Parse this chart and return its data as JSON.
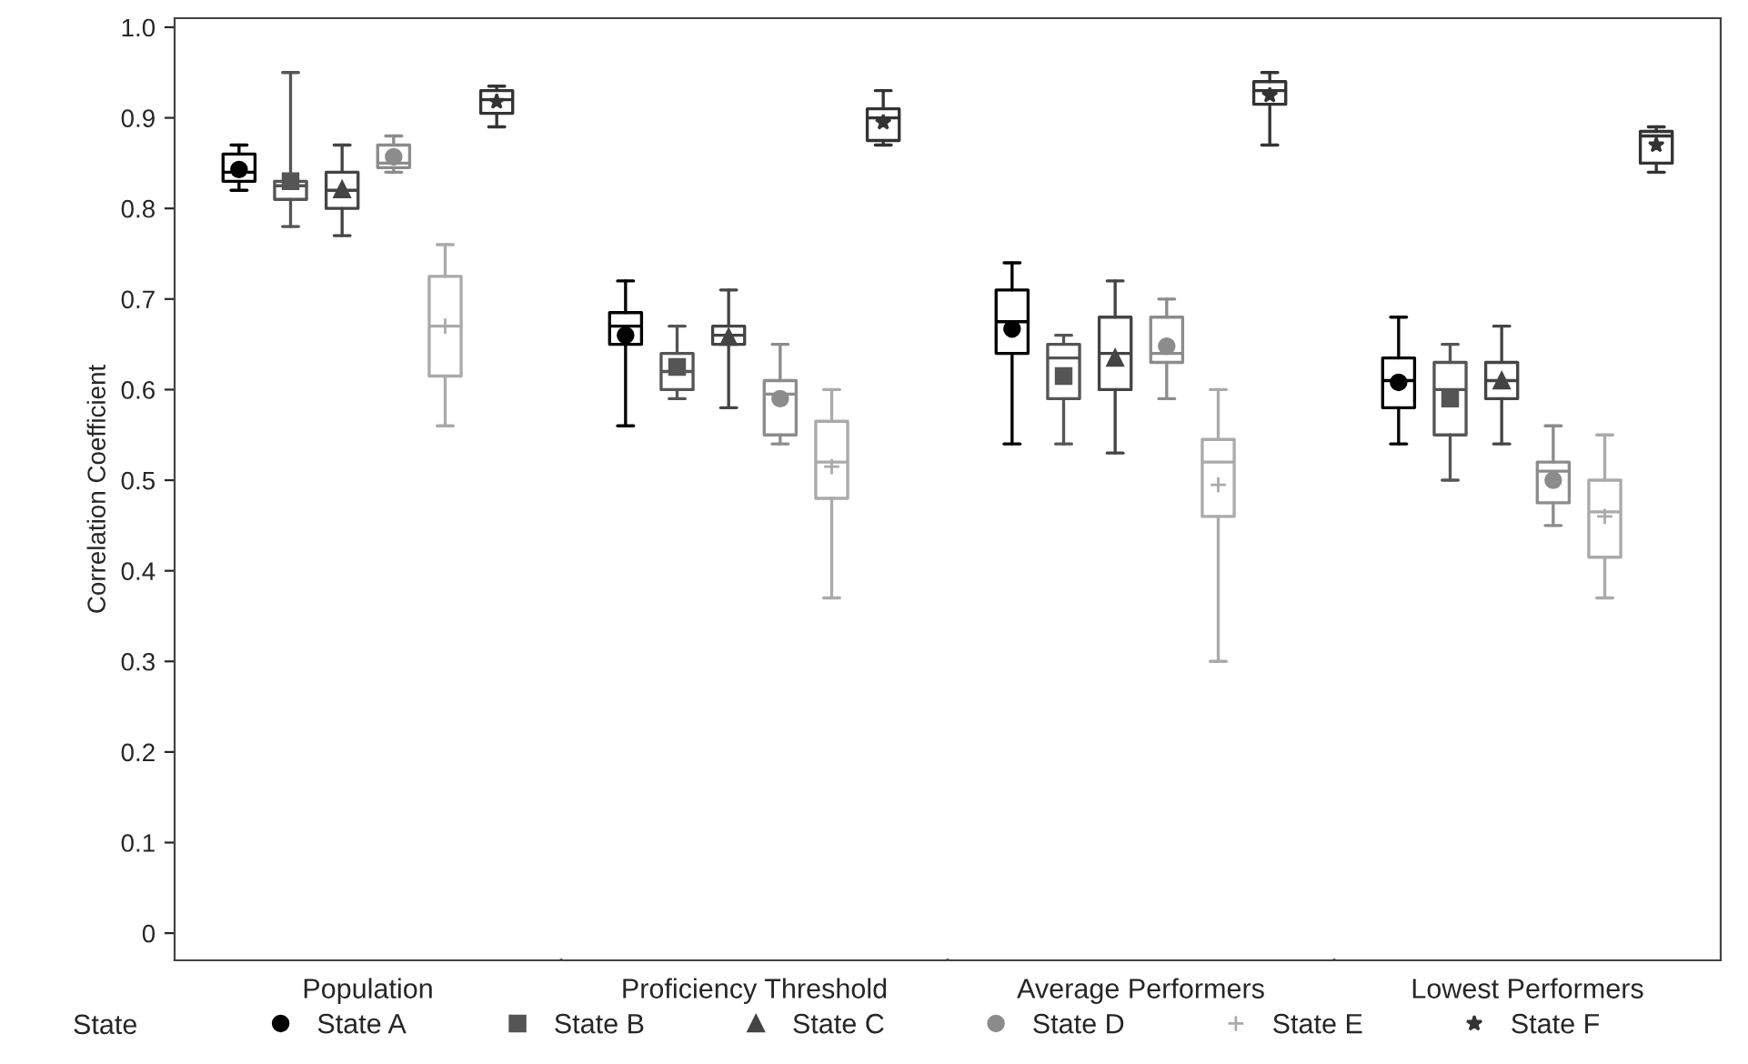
{
  "chart_data": {
    "type": "box",
    "ylabel": "Correlation Coefficient",
    "legend_title": "State",
    "legend": "bottom",
    "grid": false,
    "categories": [
      "Population",
      "Proficiency Threshold",
      "Average Performers",
      "Lowest Performers"
    ],
    "ylim": [
      -0.03,
      1.01
    ],
    "yticks": [
      {
        "value": 0,
        "label": "0"
      },
      0.1,
      0.2,
      0.3,
      0.4,
      0.5,
      0.6,
      0.7,
      0.8,
      0.9,
      {
        "value": 1,
        "label": "1.0"
      }
    ],
    "series": [
      {
        "name": "State A",
        "color": "#000000",
        "marker": "circle",
        "boxes": [
          {
            "low": 0.82,
            "q1": 0.83,
            "median": 0.84,
            "q3": 0.86,
            "high": 0.87,
            "mean": 0.843
          },
          {
            "low": 0.56,
            "q1": 0.65,
            "median": 0.67,
            "q3": 0.685,
            "high": 0.72,
            "mean": 0.66
          },
          {
            "low": 0.54,
            "q1": 0.64,
            "median": 0.675,
            "q3": 0.71,
            "high": 0.74,
            "mean": 0.667
          },
          {
            "low": 0.54,
            "q1": 0.58,
            "median": 0.61,
            "q3": 0.635,
            "high": 0.68,
            "mean": 0.608
          }
        ]
      },
      {
        "name": "State B",
        "color": "#555555",
        "marker": "square",
        "boxes": [
          {
            "low": 0.78,
            "q1": 0.81,
            "median": 0.825,
            "q3": 0.83,
            "high": 0.95,
            "mean": 0.83
          },
          {
            "low": 0.59,
            "q1": 0.6,
            "median": 0.62,
            "q3": 0.64,
            "high": 0.67,
            "mean": 0.625
          },
          {
            "low": 0.54,
            "q1": 0.59,
            "median": 0.635,
            "q3": 0.65,
            "high": 0.66,
            "mean": 0.615
          },
          {
            "low": 0.5,
            "q1": 0.55,
            "median": 0.6,
            "q3": 0.63,
            "high": 0.65,
            "mean": 0.59
          }
        ]
      },
      {
        "name": "State C",
        "color": "#444444",
        "marker": "triangle",
        "boxes": [
          {
            "low": 0.77,
            "q1": 0.8,
            "median": 0.82,
            "q3": 0.84,
            "high": 0.87,
            "mean": 0.821
          },
          {
            "low": 0.58,
            "q1": 0.65,
            "median": 0.66,
            "q3": 0.67,
            "high": 0.71,
            "mean": 0.658
          },
          {
            "low": 0.53,
            "q1": 0.6,
            "median": 0.64,
            "q3": 0.68,
            "high": 0.72,
            "mean": 0.635
          },
          {
            "low": 0.54,
            "q1": 0.59,
            "median": 0.61,
            "q3": 0.63,
            "high": 0.67,
            "mean": 0.61
          }
        ]
      },
      {
        "name": "State D",
        "color": "#8c8c8c",
        "marker": "circle",
        "boxes": [
          {
            "low": 0.84,
            "q1": 0.845,
            "median": 0.85,
            "q3": 0.87,
            "high": 0.88,
            "mean": 0.857
          },
          {
            "low": 0.54,
            "q1": 0.55,
            "median": 0.595,
            "q3": 0.61,
            "high": 0.65,
            "mean": 0.59
          },
          {
            "low": 0.59,
            "q1": 0.63,
            "median": 0.64,
            "q3": 0.68,
            "high": 0.7,
            "mean": 0.648
          },
          {
            "low": 0.45,
            "q1": 0.475,
            "median": 0.51,
            "q3": 0.52,
            "high": 0.56,
            "mean": 0.5
          }
        ]
      },
      {
        "name": "State E",
        "color": "#aaaaaa",
        "marker": "cross",
        "boxes": [
          {
            "low": 0.56,
            "q1": 0.615,
            "median": 0.67,
            "q3": 0.725,
            "high": 0.76,
            "mean": 0.67
          },
          {
            "low": 0.37,
            "q1": 0.48,
            "median": 0.52,
            "q3": 0.565,
            "high": 0.6,
            "mean": 0.515
          },
          {
            "low": 0.3,
            "q1": 0.46,
            "median": 0.52,
            "q3": 0.545,
            "high": 0.6,
            "mean": 0.495
          },
          {
            "low": 0.37,
            "q1": 0.415,
            "median": 0.465,
            "q3": 0.5,
            "high": 0.55,
            "mean": 0.46
          }
        ]
      },
      {
        "name": "State F",
        "color": "#333333",
        "marker": "star",
        "boxes": [
          {
            "low": 0.89,
            "q1": 0.905,
            "median": 0.92,
            "q3": 0.93,
            "high": 0.935,
            "mean": 0.918
          },
          {
            "low": 0.87,
            "q1": 0.875,
            "median": 0.9,
            "q3": 0.91,
            "high": 0.93,
            "mean": 0.895
          },
          {
            "low": 0.87,
            "q1": 0.915,
            "median": 0.93,
            "q3": 0.94,
            "high": 0.95,
            "mean": 0.925
          },
          {
            "low": 0.84,
            "q1": 0.85,
            "median": 0.88,
            "q3": 0.885,
            "high": 0.89,
            "mean": 0.87
          }
        ]
      }
    ]
  }
}
